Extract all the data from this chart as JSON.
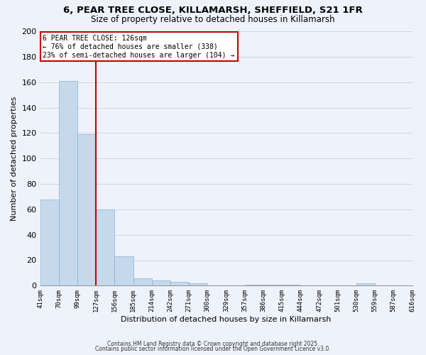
{
  "title": "6, PEAR TREE CLOSE, KILLAMARSH, SHEFFIELD, S21 1FR",
  "subtitle": "Size of property relative to detached houses in Killamarsh",
  "xlabel": "Distribution of detached houses by size in Killamarsh",
  "ylabel": "Number of detached properties",
  "bar_values": [
    68,
    161,
    119,
    60,
    23,
    6,
    4,
    3,
    2,
    0,
    0,
    1,
    1,
    1,
    0,
    0,
    0,
    2
  ],
  "bin_labels": [
    "41sqm",
    "70sqm",
    "99sqm",
    "127sqm",
    "156sqm",
    "185sqm",
    "214sqm",
    "242sqm",
    "271sqm",
    "300sqm",
    "329sqm",
    "357sqm",
    "386sqm",
    "415sqm",
    "444sqm",
    "472sqm",
    "501sqm",
    "530sqm",
    "559sqm",
    "587sqm",
    "616sqm"
  ],
  "bar_color": "#c6d9ec",
  "bar_edge_color": "#8ab0d0",
  "grid_color": "#c8d8e8",
  "background_color": "#eef2fb",
  "vline_x_index": 3,
  "vline_color": "#cc0000",
  "annotation_line1": "6 PEAR TREE CLOSE: 126sqm",
  "annotation_line2": "← 76% of detached houses are smaller (338)",
  "annotation_line3": "23% of semi-detached houses are larger (104) →",
  "annotation_box_color": "#ffffff",
  "annotation_box_edge": "#cc0000",
  "ylim": [
    0,
    200
  ],
  "yticks": [
    0,
    20,
    40,
    60,
    80,
    100,
    120,
    140,
    160,
    180,
    200
  ],
  "footnote1": "Contains HM Land Registry data © Crown copyright and database right 2025.",
  "footnote2": "Contains public sector information licensed under the Open Government Licence v3.0."
}
